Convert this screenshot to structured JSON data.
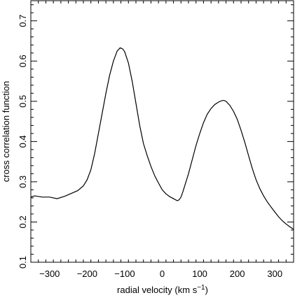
{
  "chart_data": {
    "type": "line",
    "title": "",
    "xlabel": "radial velocity",
    "xlabel_units": "(km s",
    "xlabel_exponent": "−1",
    "xlabel_close": ")",
    "ylabel": "cross correlation function",
    "xlim": [
      -350,
      350
    ],
    "ylim": [
      0.1,
      0.75
    ],
    "x_ticks": [
      -300,
      -200,
      -100,
      0,
      100,
      200,
      300
    ],
    "x_tick_labels": [
      "−300",
      "−200",
      "−100",
      "0",
      "100",
      "200",
      "300"
    ],
    "y_ticks": [
      0.1,
      0.2,
      0.3,
      0.4,
      0.5,
      0.6,
      0.7
    ],
    "y_tick_labels": [
      "0.1",
      "0.2",
      "0.3",
      "0.4",
      "0.5",
      "0.6",
      "0.7"
    ],
    "grid": false,
    "series": [
      {
        "x": [
          -350,
          -340,
          -320,
          -300,
          -280,
          -260,
          -240,
          -225,
          -210,
          -200,
          -190,
          -180,
          -170,
          -160,
          -150,
          -140,
          -130,
          -120,
          -112,
          -105,
          -100,
          -90,
          -80,
          -70,
          -60,
          -50,
          -40,
          -30,
          -20,
          -10,
          0,
          10,
          20,
          30,
          40,
          45,
          50,
          55,
          60,
          70,
          80,
          90,
          100,
          110,
          120,
          130,
          140,
          150,
          160,
          165,
          170,
          180,
          190,
          200,
          210,
          220,
          230,
          240,
          250,
          260,
          270,
          280,
          290,
          300,
          310,
          320,
          330,
          340,
          350
        ],
        "y": [
          0.262,
          0.265,
          0.262,
          0.262,
          0.258,
          0.264,
          0.272,
          0.278,
          0.29,
          0.305,
          0.33,
          0.37,
          0.42,
          0.47,
          0.52,
          0.565,
          0.6,
          0.625,
          0.633,
          0.63,
          0.623,
          0.595,
          0.55,
          0.495,
          0.44,
          0.395,
          0.365,
          0.338,
          0.315,
          0.297,
          0.28,
          0.27,
          0.263,
          0.258,
          0.253,
          0.255,
          0.262,
          0.275,
          0.29,
          0.32,
          0.355,
          0.39,
          0.42,
          0.447,
          0.468,
          0.482,
          0.492,
          0.498,
          0.502,
          0.502,
          0.5,
          0.49,
          0.475,
          0.455,
          0.428,
          0.398,
          0.365,
          0.333,
          0.305,
          0.283,
          0.265,
          0.25,
          0.237,
          0.225,
          0.213,
          0.203,
          0.195,
          0.188,
          0.182
        ]
      }
    ]
  }
}
